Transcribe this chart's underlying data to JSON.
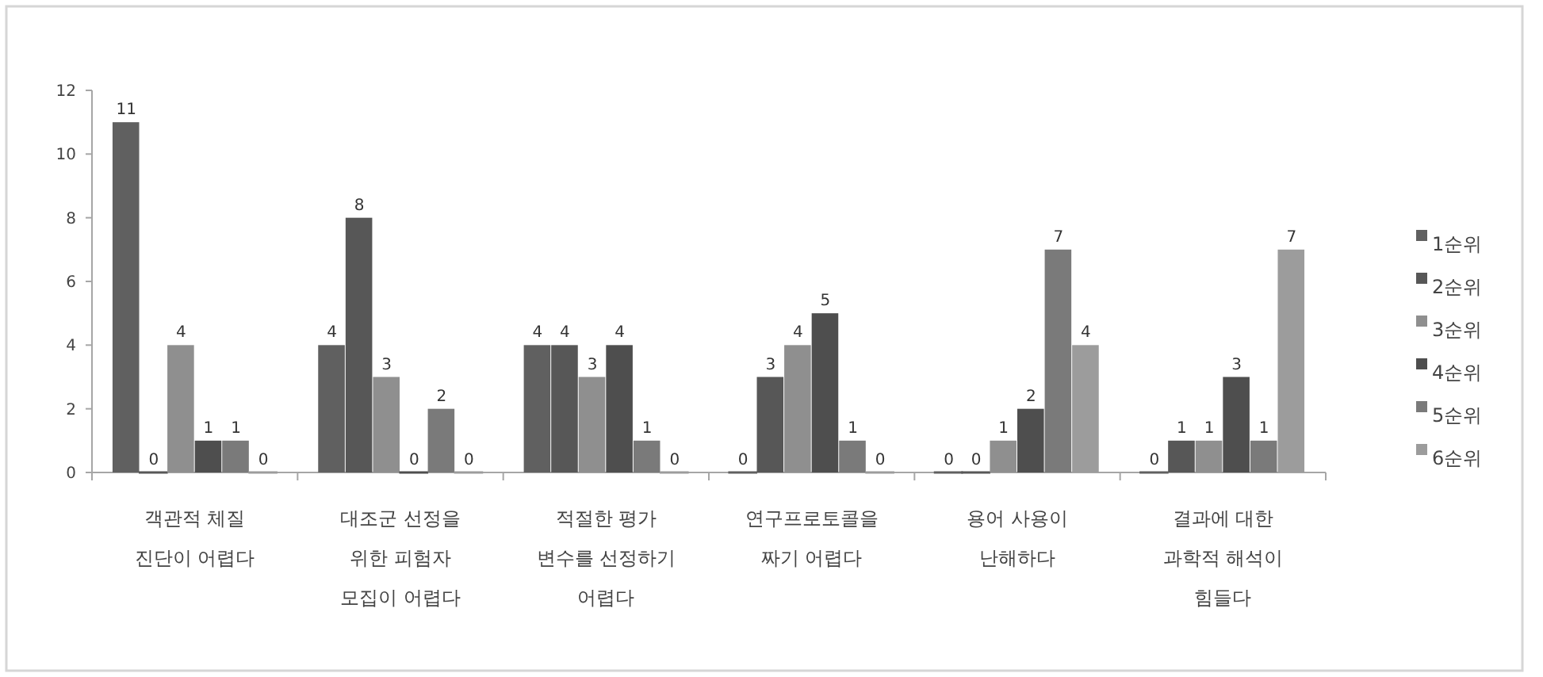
{
  "chart_data": {
    "type": "bar",
    "categories": [
      "객관적 체질 진단이 어렵다",
      "대조군 선정을 위한 피험자 모집이 어렵다",
      "적절한 평가 변수를 선정하기 어렵다",
      "연구프로토콜을 짜기 어렵다",
      "용어 사용이 난해하다",
      "결과에 대한 과학적 해석이 힘들다"
    ],
    "series": [
      {
        "name": "1순위",
        "color": "#606060",
        "values": [
          11,
          4,
          4,
          0,
          0,
          0
        ]
      },
      {
        "name": "2순위",
        "color": "#575757",
        "values": [
          0,
          8,
          4,
          3,
          0,
          1
        ]
      },
      {
        "name": "3순위",
        "color": "#8f8f8f",
        "values": [
          4,
          3,
          3,
          4,
          1,
          1
        ]
      },
      {
        "name": "4순위",
        "color": "#4e4e4e",
        "values": [
          1,
          0,
          4,
          5,
          2,
          3
        ]
      },
      {
        "name": "5순위",
        "color": "#7a7a7a",
        "values": [
          1,
          2,
          1,
          1,
          7,
          1
        ]
      },
      {
        "name": "6순위",
        "color": "#9c9c9c",
        "values": [
          0,
          0,
          0,
          0,
          4,
          7
        ]
      }
    ],
    "ylim": [
      0,
      12
    ],
    "yticks": [
      0,
      2,
      4,
      6,
      8,
      10,
      12
    ],
    "data_labels": true,
    "legend": "right"
  }
}
